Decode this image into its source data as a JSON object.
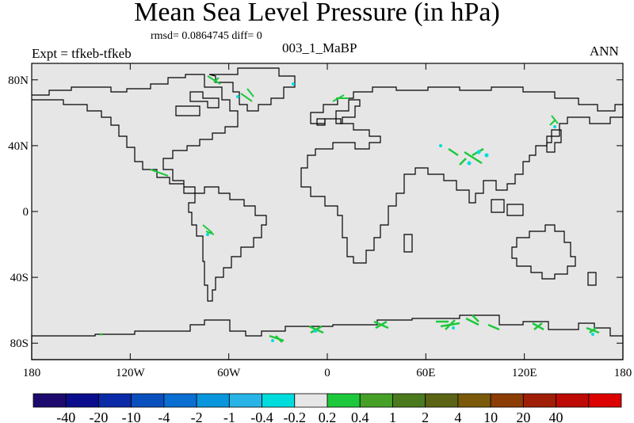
{
  "header": {
    "title": "Mean Sea Level Pressure (in hPa)",
    "stats": "rmsd= 0.0864745 diff= 0",
    "expt": "Expt = tfkeb-tfkeb",
    "run_label": "003_1_MaBP",
    "season": "ANN"
  },
  "map": {
    "ocean_color": "#e6e6e6",
    "x_ticks": [
      "180",
      "120W",
      "60W",
      "0",
      "60E",
      "120E",
      "180"
    ],
    "y_ticks": [
      "80N",
      "40N",
      "0",
      "40S",
      "80S"
    ]
  },
  "colorbar": {
    "colors": [
      "#1e0a6e",
      "#0a0e8c",
      "#0a2aa8",
      "#0a4fbe",
      "#0a6ed2",
      "#0a96dc",
      "#28b4e6",
      "#00dcdc",
      "#e6e6e6",
      "#1ec83c",
      "#46a028",
      "#4b7a1e",
      "#5a6414",
      "#7a5a0a",
      "#8c3c05",
      "#a01e05",
      "#be0a05",
      "#dc0000"
    ],
    "labels": [
      "-40",
      "-20",
      "-10",
      "-4",
      "-2",
      "-1",
      "-0.4",
      "-0.2",
      "0.2",
      "0.4",
      "1",
      "2",
      "4",
      "10",
      "20",
      "40"
    ]
  }
}
